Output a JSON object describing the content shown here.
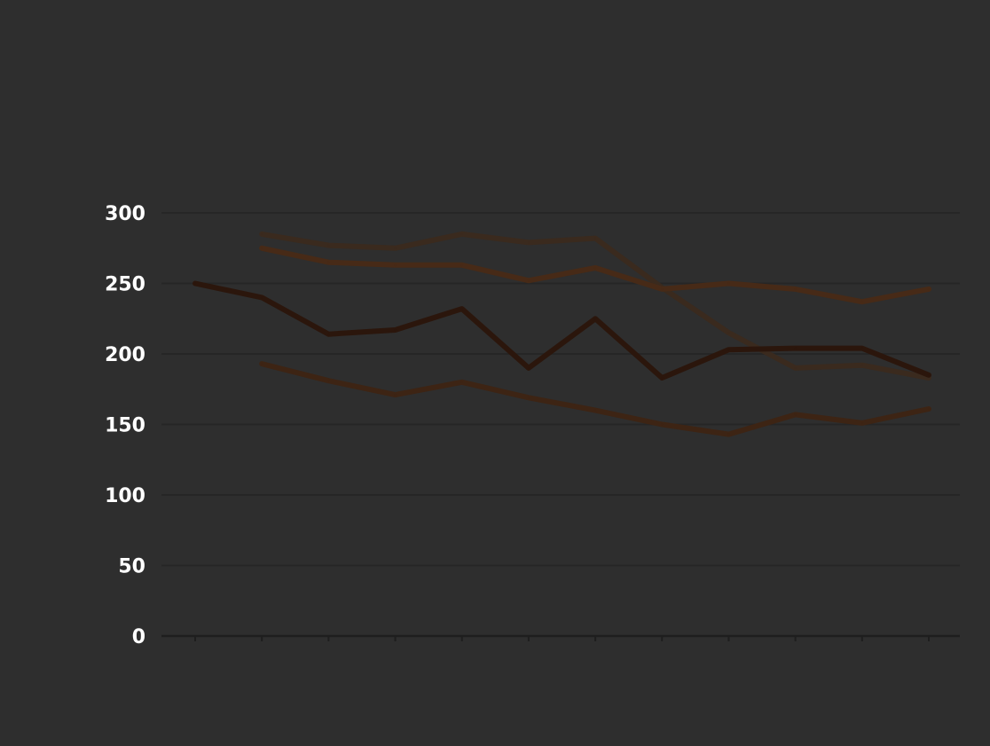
{
  "chart_data": {
    "type": "line",
    "title": "",
    "xlabel": "",
    "ylabel": "",
    "categories": [
      "",
      "",
      "",
      "",
      "",
      "",
      "",
      "",
      "",
      "",
      "",
      ""
    ],
    "ylim": [
      0,
      300
    ],
    "yticks": [
      0,
      50,
      100,
      150,
      200,
      250,
      300
    ],
    "ytick_labels": [
      "0",
      "50",
      "100",
      "150",
      "200",
      "250",
      "300"
    ],
    "grid": true,
    "legend_position": "top-right",
    "series": [
      {
        "name": "",
        "color": "#3a2a1e",
        "values": [
          null,
          285,
          277,
          275,
          285,
          279,
          282,
          247,
          215,
          190,
          192,
          183
        ]
      },
      {
        "name": "",
        "color": "#3d2414",
        "values": [
          null,
          193,
          181,
          171,
          180,
          169,
          160,
          150,
          143,
          157,
          151,
          161
        ]
      },
      {
        "name": "",
        "color": "#472a17",
        "values": [
          null,
          275,
          265,
          263,
          263,
          252,
          261,
          246,
          250,
          246,
          237,
          246
        ]
      },
      {
        "name": "",
        "color": "#2b160c",
        "values": [
          250,
          240,
          214,
          217,
          232,
          190,
          225,
          183,
          203,
          204,
          204,
          185
        ]
      }
    ]
  }
}
